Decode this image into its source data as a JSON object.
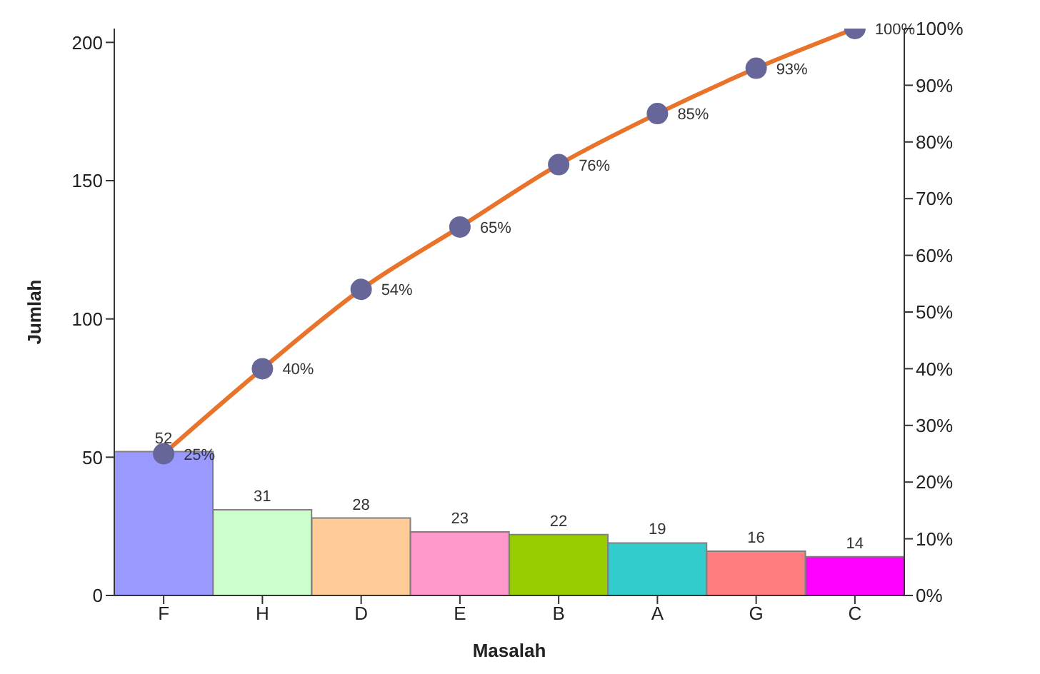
{
  "chart_data": {
    "type": "bar",
    "xlabel": "Masalah",
    "ylabel": "Jumlah",
    "categories": [
      "F",
      "H",
      "D",
      "E",
      "B",
      "A",
      "G",
      "C"
    ],
    "series": [
      {
        "colors": [
          "#9999ff",
          "#ccffcc",
          "#ffcc99",
          "#ff99cc",
          "#99cc00",
          "#33cccc",
          "#ff7c80",
          "#ff00ff"
        ],
        "values": [
          52,
          31,
          28,
          23,
          22,
          19,
          16,
          14
        ]
      },
      {
        "type": "line",
        "axis": "y2",
        "color": "#e8732a",
        "values": [
          25,
          40,
          54,
          65,
          76,
          85,
          93,
          100
        ],
        "value_labels": [
          "25%",
          "40%",
          "54%",
          "65%",
          "76%",
          "85%",
          "93%",
          "100%"
        ]
      }
    ],
    "data_labels": true,
    "marker": "circle",
    "legend": false,
    "grid": false,
    "ylim": [
      0,
      205
    ],
    "yticks": [
      0,
      50,
      100,
      150,
      200
    ],
    "y2lim": [
      0,
      100
    ],
    "y2ticks": [
      {
        "value": 0,
        "label": "0%"
      },
      {
        "value": 10,
        "label": "10%"
      },
      {
        "value": 20,
        "label": "20%"
      },
      {
        "value": 30,
        "label": "30%"
      },
      {
        "value": 40,
        "label": "40%"
      },
      {
        "value": 50,
        "label": "50%"
      },
      {
        "value": 60,
        "label": "60%"
      },
      {
        "value": 70,
        "label": "70%"
      },
      {
        "value": 80,
        "label": "80%"
      },
      {
        "value": 90,
        "label": "90%"
      },
      {
        "value": 100,
        "label": "100%"
      }
    ]
  }
}
